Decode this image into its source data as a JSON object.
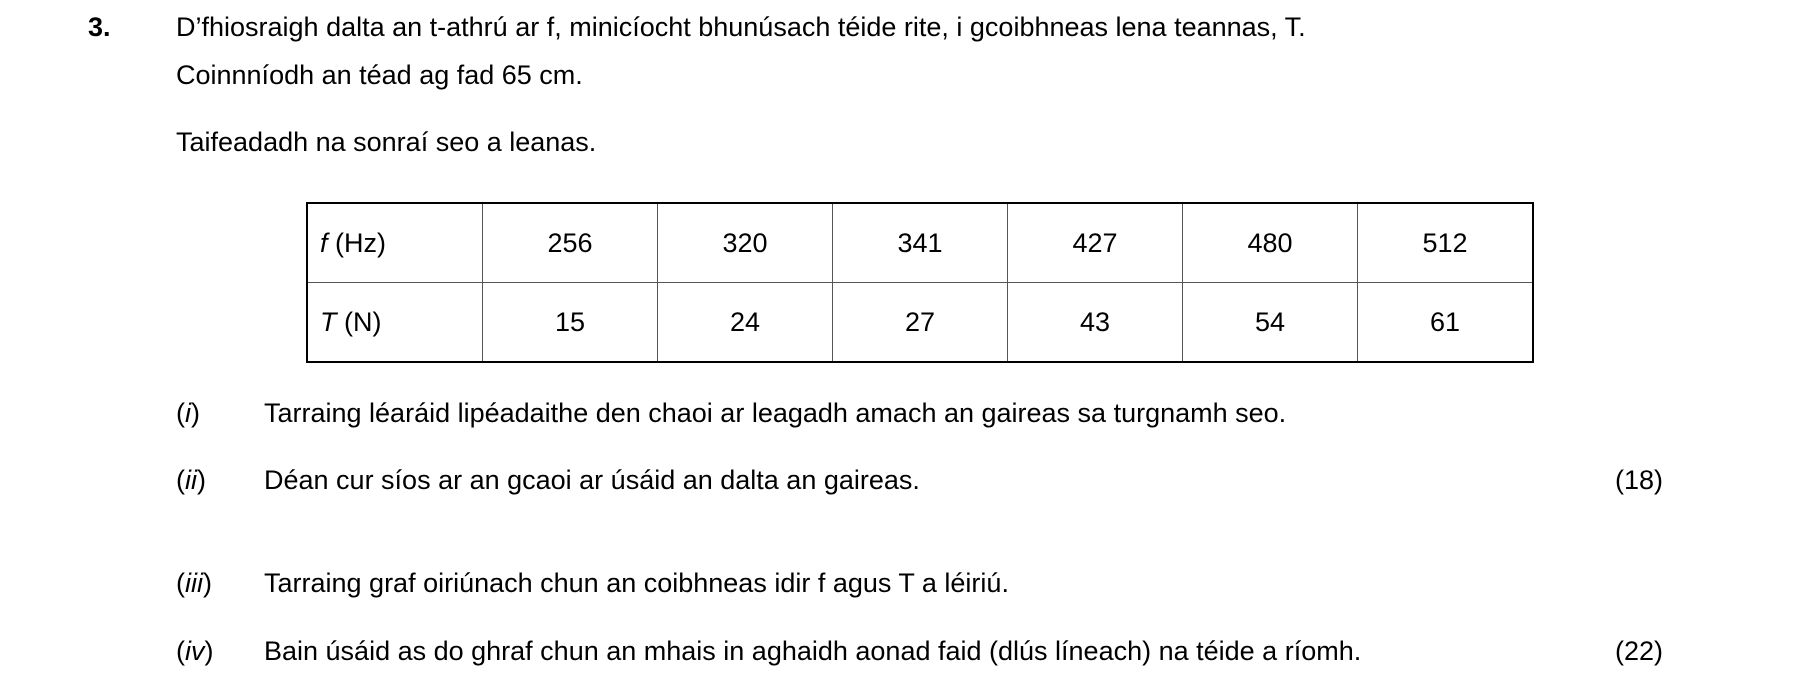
{
  "question": {
    "number": "3.",
    "intro_line1": "D’fhiosraigh dalta an t-athrú ar f, minicíocht bhunúsach téide rite, i gcoibhneas lena teannas, T.",
    "intro_line2": "Coinnníodh an téad ag fad 65 cm.",
    "intro_line3": "Taifeadadh na sonraí seo a leanas."
  },
  "table": {
    "rows": [
      {
        "var": "f",
        "unit": " (Hz)",
        "values": [
          "256",
          "320",
          "341",
          "427",
          "480",
          "512"
        ]
      },
      {
        "var": "T",
        "unit": " (N)",
        "values": [
          "15",
          "24",
          "27",
          "43",
          "54",
          "61"
        ]
      }
    ]
  },
  "parts": [
    {
      "label": "i",
      "text": "Tarraing léaráid lipéadaithe den chaoi ar leagadh amach an gaireas sa turgnamh seo.",
      "marks": ""
    },
    {
      "label": "ii",
      "text": "Déan cur síos ar an gcaoi ar úsáid an dalta an gaireas.",
      "marks": "(18)"
    },
    {
      "label": "iii",
      "text": "Tarraing graf oiriúnach chun an coibhneas idir f agus T a léiriú.",
      "marks": ""
    },
    {
      "label": "iv",
      "text": "Bain úsáid as do ghraf chun an mhais in aghaidh aonad faid (dlús líneach) na téide a ríomh.",
      "marks": "(22)"
    }
  ]
}
